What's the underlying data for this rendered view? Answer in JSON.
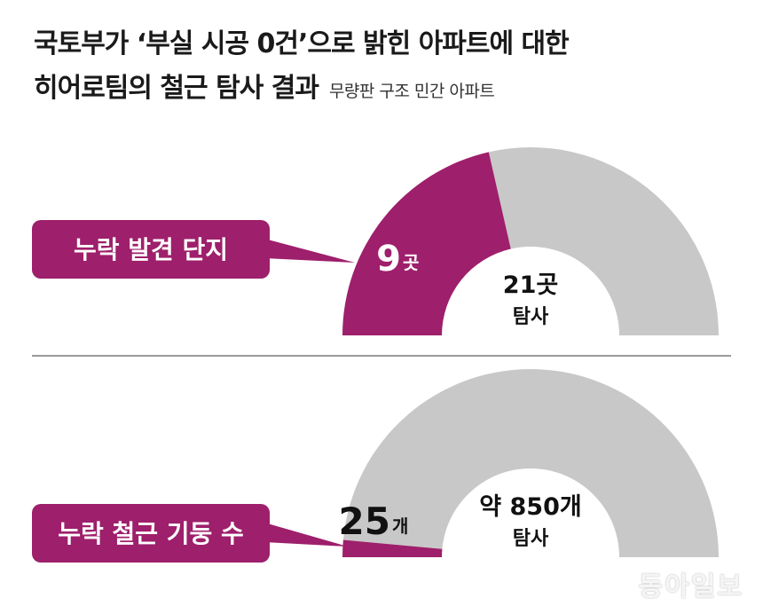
{
  "header": {
    "title_line1": "국토부가 ‘부실 시공 0건’으로 밝힌 아파트에 대한",
    "title_line2": "히어로팀의 철근 탐사 결과",
    "subtitle": "무량판 구조 민간 아파트"
  },
  "colors": {
    "accent": "#9e1f6b",
    "rest": "#c8c8c8",
    "callout": "#9e1f6b"
  },
  "chart_data": [
    {
      "type": "donut-half",
      "label": "누락 발견 단지",
      "highlight": {
        "value": 9,
        "number": "9",
        "unit": "곳"
      },
      "total": {
        "value": 21,
        "number": "21곳",
        "caption": "탐사"
      }
    },
    {
      "type": "donut-half",
      "label": "누락 철근 기둥 수",
      "highlight": {
        "value": 25,
        "number": "25",
        "unit": "개"
      },
      "total": {
        "value": 850,
        "number": "약 850개",
        "caption": "탐사"
      }
    }
  ],
  "watermark": "동아일보"
}
